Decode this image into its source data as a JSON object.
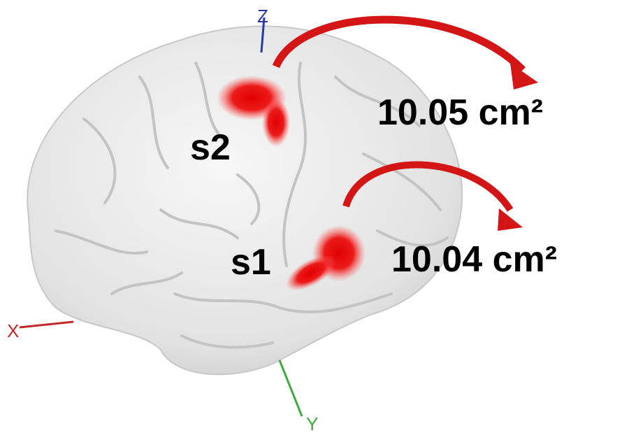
{
  "regions": [
    {
      "label": "s2",
      "area": "10.05 cm²"
    },
    {
      "label": "s1",
      "area": "10.04 cm²"
    }
  ],
  "axes": {
    "x": "X",
    "y": "Y",
    "z": "Z"
  }
}
